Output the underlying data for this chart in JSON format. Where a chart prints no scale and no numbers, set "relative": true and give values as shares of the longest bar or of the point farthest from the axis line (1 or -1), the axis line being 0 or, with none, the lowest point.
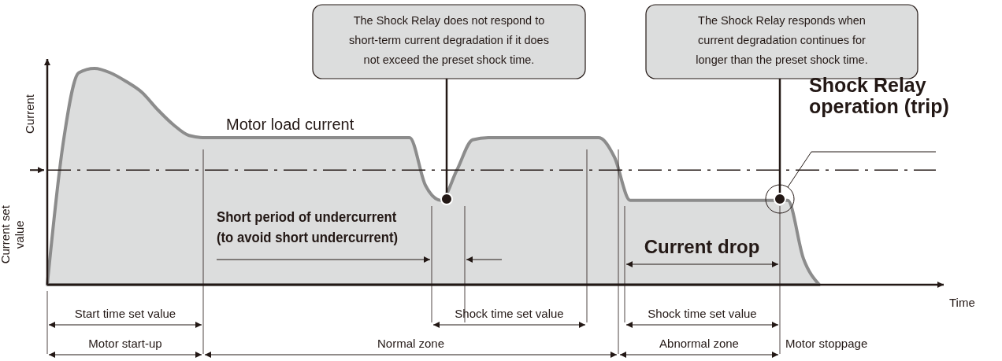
{
  "chart_data": {
    "type": "area",
    "relative": true,
    "xlabel": "Time",
    "ylabel": "Current",
    "color": "#dcdddd",
    "categories": [
      null,
      null,
      null,
      null,
      null,
      null,
      null,
      null,
      null,
      null,
      null,
      null,
      null,
      null,
      null,
      null,
      null,
      null,
      null,
      null,
      null,
      null,
      null,
      null,
      null,
      null,
      null,
      null,
      null,
      null,
      null,
      null,
      null,
      null,
      null,
      null,
      null,
      null,
      null,
      null,
      null,
      null,
      null,
      null,
      null,
      null,
      null,
      null,
      null,
      null,
      null,
      null,
      null,
      null,
      null,
      null,
      null
    ],
    "values": [
      0,
      0.65,
      0.98,
      1,
      0.98,
      0.94,
      0.89,
      0.81,
      0.74,
      0.69,
      0.68,
      0.68,
      0.68,
      0.68,
      0.68,
      0.68,
      0.68,
      0.68,
      0.68,
      0.68,
      0.68,
      0.68,
      0.68,
      0.68,
      0.46,
      0.39,
      0.53,
      0.67,
      0.68,
      0.68,
      0.68,
      0.68,
      0.68,
      0.68,
      0.68,
      0.68,
      0.59,
      0.39,
      0.39,
      0.39,
      0.39,
      0.39,
      0.39,
      0.39,
      0.39,
      0.39,
      0.39,
      0.39,
      0.12,
      0,
      null,
      null,
      null,
      null,
      null,
      null,
      null
    ],
    "ref_lines": [
      {
        "axis": "y",
        "value": 0.53,
        "label": "Current set value",
        "line_style": "dashed",
        "color": "#231815"
      }
    ],
    "annotations": [
      "The Shock Relay does not respond to short-term current degradation if it does not exceed the preset shock time.",
      "The Shock Relay responds when current degradation continues for longer than the preset shock time.",
      "Motor load current",
      "Short period of undercurrent (to avoid short undercurrent)",
      "Current drop",
      "Shock Relay operation (trip)",
      "Start time set value",
      "Shock time set value",
      "Shock time set value",
      "Motor start-up",
      "Normal zone",
      "Abnormal zone",
      "Motor stoppage"
    ]
  }
}
